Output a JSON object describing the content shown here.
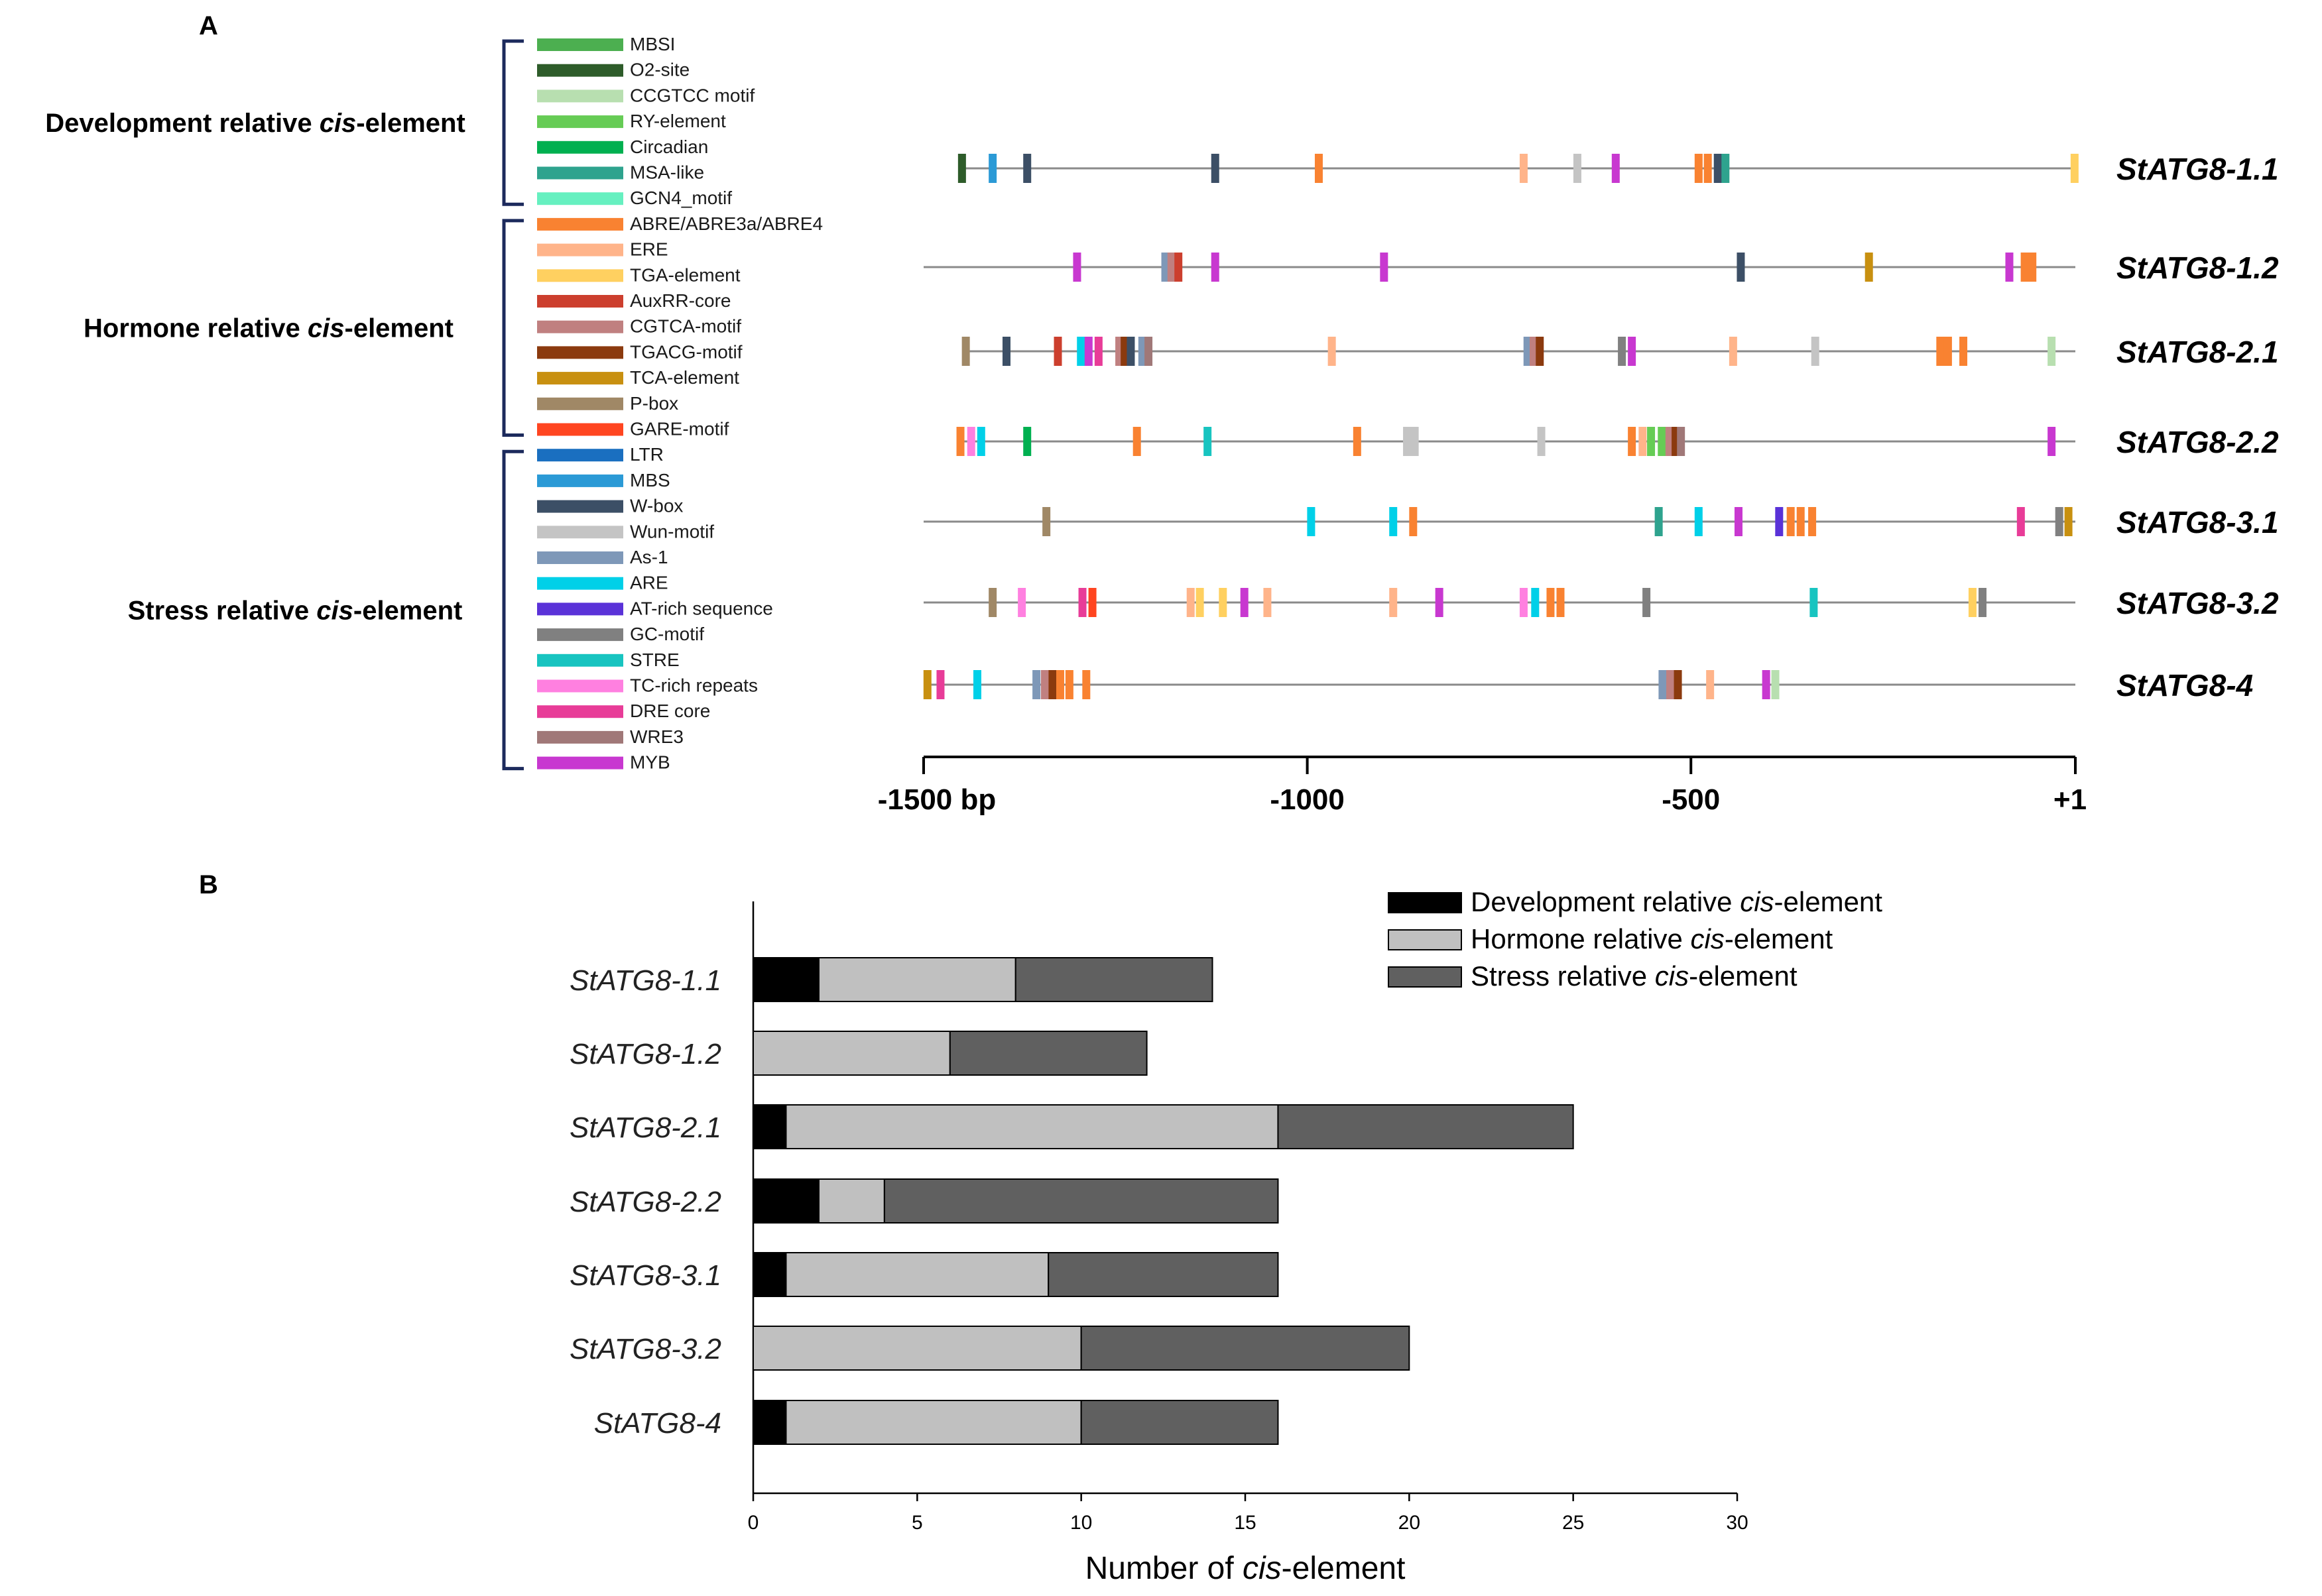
{
  "chart_data": [
    {
      "type": "promoter-map",
      "panel": "A",
      "groups": [
        {
          "label": "Development relative ",
          "label_italic": "cis",
          "label_suffix": "-element",
          "items": [
            {
              "name": "MBSI",
              "color": "#4caf50"
            },
            {
              "name": "O2-site",
              "color": "#2e5c2a"
            },
            {
              "name": "CCGTCC motif",
              "color": "#b8dfb0"
            },
            {
              "name": "RY-element",
              "color": "#66cc55"
            },
            {
              "name": "Circadian",
              "color": "#00b050"
            },
            {
              "name": "MSA-like",
              "color": "#2ea38e"
            },
            {
              "name": "GCN4_motif",
              "color": "#66f0c0"
            }
          ]
        },
        {
          "label": "Hormone relative ",
          "label_italic": "cis",
          "label_suffix": "-element",
          "items": [
            {
              "name": "ABRE/ABRE3a/ABRE4",
              "color": "#f98231"
            },
            {
              "name": "ERE",
              "color": "#ffb48a"
            },
            {
              "name": "TGA-element",
              "color": "#ffd060"
            },
            {
              "name": "AuxRR-core",
              "color": "#cc3f2e"
            },
            {
              "name": "CGTCA-motif",
              "color": "#c08080"
            },
            {
              "name": "TGACG-motif",
              "color": "#8b3a0e"
            },
            {
              "name": "TCA-element",
              "color": "#c89010"
            },
            {
              "name": "P-box",
              "color": "#a08866"
            },
            {
              "name": "GARE-motif",
              "color": "#ff4520"
            }
          ]
        },
        {
          "label": "Stress relative ",
          "label_italic": "cis",
          "label_suffix": "-element",
          "items": [
            {
              "name": "LTR",
              "color": "#1a6fc0"
            },
            {
              "name": "MBS",
              "color": "#2b9ad6"
            },
            {
              "name": "W-box",
              "color": "#3c4f66"
            },
            {
              "name": "Wun-motif",
              "color": "#c4c4c4"
            },
            {
              "name": "As-1",
              "color": "#7e98b8"
            },
            {
              "name": "ARE",
              "color": "#00d0e8"
            },
            {
              "name": "AT-rich sequence",
              "color": "#5a32d8"
            },
            {
              "name": "GC-motif",
              "color": "#808080"
            },
            {
              "name": "STRE",
              "color": "#18c4c0"
            },
            {
              "name": "TC-rich repeats",
              "color": "#ff80e0"
            },
            {
              "name": "DRE core",
              "color": "#e83c98"
            },
            {
              "name": "WRE3",
              "color": "#a07878"
            },
            {
              "name": "MYB",
              "color": "#c838d0"
            }
          ]
        }
      ],
      "axis": {
        "min": -1500,
        "max": 1,
        "tick_values": [
          -1500,
          -1000,
          -500,
          1
        ],
        "tick_labels": [
          "-1500 bp",
          "-1000",
          "-500",
          "+1"
        ]
      },
      "genes": [
        {
          "name": "StATG8-1.1",
          "line_start": -1450,
          "elements": [
            {
              "pos": -1450,
              "c": "O2-site"
            },
            {
              "pos": -1410,
              "c": "MBS"
            },
            {
              "pos": -1365,
              "c": "W-box"
            },
            {
              "pos": -1120,
              "c": "W-box"
            },
            {
              "pos": -985,
              "c": "ABRE/ABRE3a/ABRE4"
            },
            {
              "pos": -718,
              "c": "ERE"
            },
            {
              "pos": -648,
              "c": "Wun-motif"
            },
            {
              "pos": -598,
              "c": "MYB"
            },
            {
              "pos": -490,
              "c": "ABRE/ABRE3a/ABRE4"
            },
            {
              "pos": -478,
              "c": "ABRE/ABRE3a/ABRE4"
            },
            {
              "pos": -465,
              "c": "W-box"
            },
            {
              "pos": -455,
              "c": "MSA-like"
            },
            {
              "pos": 0,
              "c": "TGA-element"
            }
          ]
        },
        {
          "name": "StATG8-1.2",
          "line_start": -1500,
          "elements": [
            {
              "pos": -1300,
              "c": "MYB"
            },
            {
              "pos": -1185,
              "c": "As-1"
            },
            {
              "pos": -1177,
              "c": "CGTCA-motif"
            },
            {
              "pos": -1168,
              "c": "AuxRR-core"
            },
            {
              "pos": -1120,
              "c": "MYB"
            },
            {
              "pos": -900,
              "c": "MYB"
            },
            {
              "pos": -435,
              "c": "W-box"
            },
            {
              "pos": -268,
              "c": "TCA-element"
            },
            {
              "pos": -85,
              "c": "MYB"
            },
            {
              "pos": -65,
              "c": "ABRE/ABRE3a/ABRE4"
            },
            {
              "pos": -55,
              "c": "ABRE/ABRE3a/ABRE4"
            }
          ]
        },
        {
          "name": "StATG8-2.1",
          "line_start": -1445,
          "elements": [
            {
              "pos": -1445,
              "c": "P-box"
            },
            {
              "pos": -1392,
              "c": "W-box"
            },
            {
              "pos": -1325,
              "c": "AuxRR-core"
            },
            {
              "pos": -1295,
              "c": "ARE"
            },
            {
              "pos": -1285,
              "c": "MYB"
            },
            {
              "pos": -1272,
              "c": "DRE core"
            },
            {
              "pos": -1245,
              "c": "CGTCA-motif"
            },
            {
              "pos": -1238,
              "c": "TGACG-motif"
            },
            {
              "pos": -1230,
              "c": "W-box"
            },
            {
              "pos": -1215,
              "c": "As-1"
            },
            {
              "pos": -1207,
              "c": "WRE3"
            },
            {
              "pos": -968,
              "c": "ERE"
            },
            {
              "pos": -713,
              "c": "As-1"
            },
            {
              "pos": -705,
              "c": "CGTCA-motif"
            },
            {
              "pos": -697,
              "c": "TGACG-motif"
            },
            {
              "pos": -590,
              "c": "GC-motif"
            },
            {
              "pos": -577,
              "c": "MYB"
            },
            {
              "pos": -445,
              "c": "ERE"
            },
            {
              "pos": -338,
              "c": "Wun-motif"
            },
            {
              "pos": -175,
              "c": "ABRE/ABRE3a/ABRE4"
            },
            {
              "pos": -165,
              "c": "ABRE/ABRE3a/ABRE4"
            },
            {
              "pos": -145,
              "c": "ABRE/ABRE3a/ABRE4"
            },
            {
              "pos": -30,
              "c": "CCGTCC motif"
            }
          ]
        },
        {
          "name": "StATG8-2.2",
          "line_start": -1452,
          "elements": [
            {
              "pos": -1452,
              "c": "ABRE/ABRE3a/ABRE4"
            },
            {
              "pos": -1438,
              "c": "TC-rich repeats"
            },
            {
              "pos": -1425,
              "c": "ARE"
            },
            {
              "pos": -1365,
              "c": "Circadian"
            },
            {
              "pos": -1222,
              "c": "ABRE/ABRE3a/ABRE4"
            },
            {
              "pos": -1130,
              "c": "STRE"
            },
            {
              "pos": -935,
              "c": "ABRE/ABRE3a/ABRE4"
            },
            {
              "pos": -870,
              "c": "Wun-motif"
            },
            {
              "pos": -860,
              "c": "Wun-motif"
            },
            {
              "pos": -695,
              "c": "Wun-motif"
            },
            {
              "pos": -577,
              "c": "ABRE/ABRE3a/ABRE4"
            },
            {
              "pos": -563,
              "c": "ERE"
            },
            {
              "pos": -552,
              "c": "RY-element"
            },
            {
              "pos": -538,
              "c": "RY-element"
            },
            {
              "pos": -528,
              "c": "CGTCA-motif"
            },
            {
              "pos": -520,
              "c": "TGACG-motif"
            },
            {
              "pos": -513,
              "c": "WRE3"
            },
            {
              "pos": -30,
              "c": "MYB"
            }
          ]
        },
        {
          "name": "StATG8-3.1",
          "line_start": -1500,
          "elements": [
            {
              "pos": -1340,
              "c": "P-box"
            },
            {
              "pos": -995,
              "c": "ARE"
            },
            {
              "pos": -888,
              "c": "ARE"
            },
            {
              "pos": -862,
              "c": "ABRE/ABRE3a/ABRE4"
            },
            {
              "pos": -542,
              "c": "MSA-like"
            },
            {
              "pos": -490,
              "c": "ARE"
            },
            {
              "pos": -438,
              "c": "MYB"
            },
            {
              "pos": -385,
              "c": "AT-rich sequence"
            },
            {
              "pos": -370,
              "c": "ABRE/ABRE3a/ABRE4"
            },
            {
              "pos": -357,
              "c": "ABRE/ABRE3a/ABRE4"
            },
            {
              "pos": -342,
              "c": "ABRE/ABRE3a/ABRE4"
            },
            {
              "pos": -70,
              "c": "DRE core"
            },
            {
              "pos": -20,
              "c": "GC-motif"
            },
            {
              "pos": -8,
              "c": "TCA-element"
            }
          ]
        },
        {
          "name": "StATG8-3.2",
          "line_start": -1500,
          "elements": [
            {
              "pos": -1410,
              "c": "P-box"
            },
            {
              "pos": -1372,
              "c": "TC-rich repeats"
            },
            {
              "pos": -1293,
              "c": "DRE core"
            },
            {
              "pos": -1280,
              "c": "GARE-motif"
            },
            {
              "pos": -1152,
              "c": "ERE"
            },
            {
              "pos": -1140,
              "c": "TGA-element"
            },
            {
              "pos": -1110,
              "c": "TGA-element"
            },
            {
              "pos": -1082,
              "c": "MYB"
            },
            {
              "pos": -1052,
              "c": "ERE"
            },
            {
              "pos": -888,
              "c": "ERE"
            },
            {
              "pos": -828,
              "c": "MYB"
            },
            {
              "pos": -718,
              "c": "TC-rich repeats"
            },
            {
              "pos": -703,
              "c": "ARE"
            },
            {
              "pos": -683,
              "c": "ABRE/ABRE3a/ABRE4"
            },
            {
              "pos": -670,
              "c": "ABRE/ABRE3a/ABRE4"
            },
            {
              "pos": -558,
              "c": "GC-motif"
            },
            {
              "pos": -340,
              "c": "STRE"
            },
            {
              "pos": -133,
              "c": "TGA-element"
            },
            {
              "pos": -120,
              "c": "GC-motif"
            }
          ]
        },
        {
          "name": "StATG8-4",
          "line_start": -1495,
          "elements": [
            {
              "pos": -1495,
              "c": "TCA-element"
            },
            {
              "pos": -1478,
              "c": "DRE core"
            },
            {
              "pos": -1430,
              "c": "ARE"
            },
            {
              "pos": -1353,
              "c": "As-1"
            },
            {
              "pos": -1342,
              "c": "CGTCA-motif"
            },
            {
              "pos": -1332,
              "c": "TGACG-motif"
            },
            {
              "pos": -1322,
              "c": "ABRE/ABRE3a/ABRE4"
            },
            {
              "pos": -1310,
              "c": "ABRE/ABRE3a/ABRE4"
            },
            {
              "pos": -1288,
              "c": "ABRE/ABRE3a/ABRE4"
            },
            {
              "pos": -537,
              "c": "As-1"
            },
            {
              "pos": -527,
              "c": "CGTCA-motif"
            },
            {
              "pos": -517,
              "c": "TGACG-motif"
            },
            {
              "pos": -475,
              "c": "ERE"
            },
            {
              "pos": -402,
              "c": "MYB"
            },
            {
              "pos": -390,
              "c": "CCGTCC motif"
            }
          ]
        }
      ]
    },
    {
      "type": "bar",
      "panel": "B",
      "orientation": "horizontal-stacked",
      "categories": [
        "StATG8-1.1",
        "StATG8-1.2",
        "StATG8-2.1",
        "StATG8-2.2",
        "StATG8-3.1",
        "StATG8-3.2",
        "StATG8-4"
      ],
      "series": [
        {
          "name": "Development relative ",
          "name_italic": "cis",
          "name_suffix": "-element",
          "color": "#000000",
          "values": [
            2,
            0,
            1,
            2,
            1,
            0,
            1
          ]
        },
        {
          "name": "Hormone relative ",
          "name_italic": "cis",
          "name_suffix": "-element",
          "color": "#c0c0c0",
          "values": [
            6,
            6,
            15,
            2,
            8,
            10,
            9
          ]
        },
        {
          "name": "Stress relative ",
          "name_italic": "cis",
          "name_suffix": "-element",
          "color": "#606060",
          "values": [
            6,
            6,
            9,
            12,
            7,
            10,
            6
          ]
        }
      ],
      "xlabel": "Number of ",
      "xlabel_italic": "cis",
      "xlabel_suffix": "-element",
      "xlim": [
        0,
        30
      ],
      "xticks": [
        0,
        5,
        10,
        15,
        20,
        25,
        30
      ]
    }
  ],
  "panel_labels": {
    "a": "A",
    "b": "B"
  }
}
